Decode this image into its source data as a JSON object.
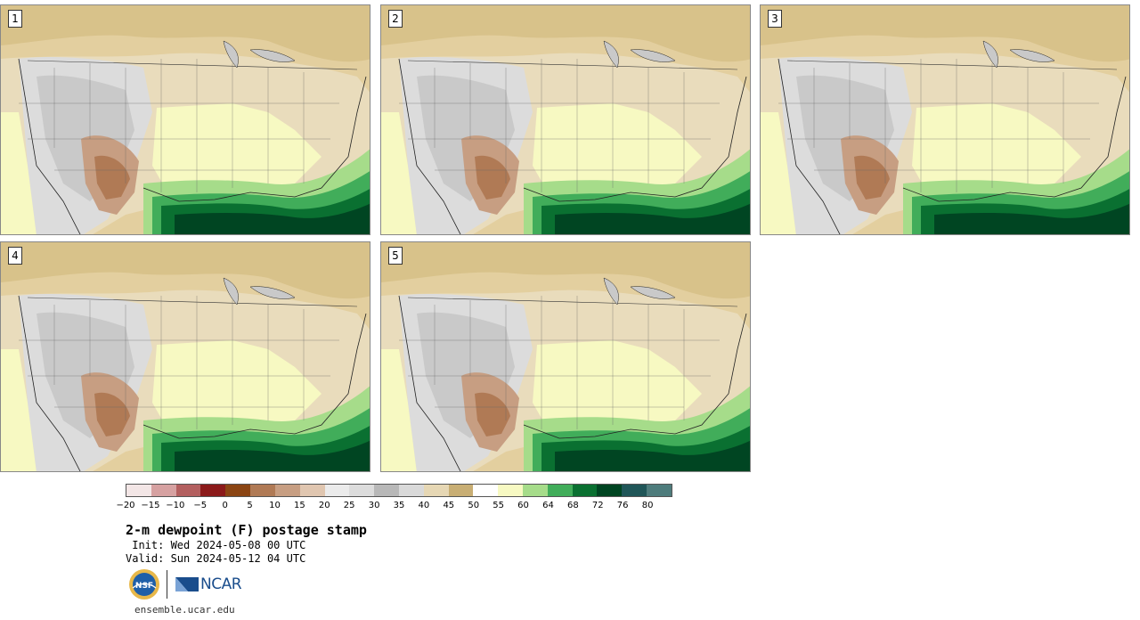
{
  "panels": [
    {
      "label": "1"
    },
    {
      "label": "2"
    },
    {
      "label": "3"
    },
    {
      "label": "4"
    },
    {
      "label": "5"
    }
  ],
  "colorbar": {
    "colors": [
      "#f3e6e6",
      "#d6a1a1",
      "#b35f5f",
      "#8b1a1a",
      "#8b4513",
      "#b07a55",
      "#c79e82",
      "#e0c6b0",
      "#ebebeb",
      "#dcdcdc",
      "#b8b8b8",
      "#d9d9d9",
      "#e6d7b4",
      "#c8ae74",
      "#ffffff",
      "#f7f9c2",
      "#a6dc8a",
      "#41ad5a",
      "#0a7031",
      "#004522",
      "#205658",
      "#4e7c7c"
    ],
    "tick_labels": [
      "−20",
      "−15",
      "−10",
      "−5",
      "0",
      "5",
      "10",
      "15",
      "20",
      "25",
      "30",
      "35",
      "40",
      "45",
      "50",
      "55",
      "60",
      "64",
      "68",
      "72",
      "76",
      "80"
    ]
  },
  "title": "2-m dewpoint (F) postage stamp",
  "init_line": " Init: Wed 2024-05-08 00 UTC",
  "valid_line": "Valid: Sun 2024-05-12 04 UTC",
  "logos": {
    "nsf": "NSF",
    "ncar": "NCAR"
  },
  "site": "ensemble.ucar.edu"
}
